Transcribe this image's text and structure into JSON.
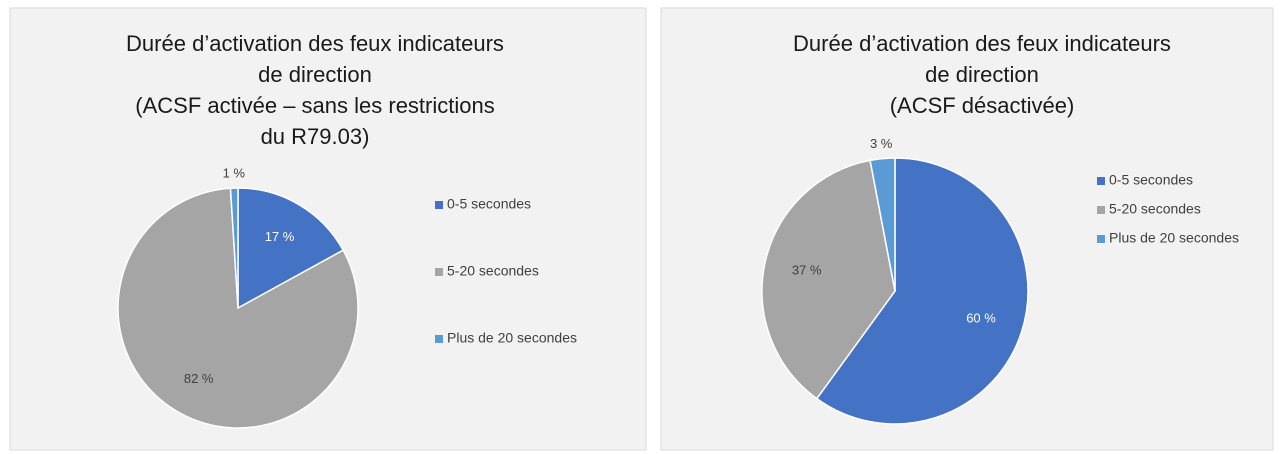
{
  "chart_data": [
    {
      "type": "pie",
      "title": [
        "Durée d’activation des feux indicateurs",
        "de direction",
        "(ACSF activée – sans les restrictions",
        "du R79.03)"
      ],
      "categories": [
        "0-5 secondes",
        "5-20 secondes",
        "Plus de 20 secondes"
      ],
      "values": [
        17,
        82,
        1
      ],
      "value_labels": [
        "17 %",
        "82 %",
        "1 %"
      ],
      "colors": [
        "#4472c4",
        "#a5a5a5",
        "#5b9bd5"
      ],
      "legend": "right"
    },
    {
      "type": "pie",
      "title": [
        "Durée d’activation des feux indicateurs",
        "de direction",
        "(ACSF désactivée)"
      ],
      "categories": [
        "0-5 secondes",
        "5-20 secondes",
        "Plus de 20 secondes"
      ],
      "values": [
        60,
        37,
        3
      ],
      "value_labels": [
        "60 %",
        "37 %",
        "3 %"
      ],
      "colors": [
        "#4472c4",
        "#a5a5a5",
        "#5b9bd5"
      ],
      "legend": "right"
    }
  ]
}
